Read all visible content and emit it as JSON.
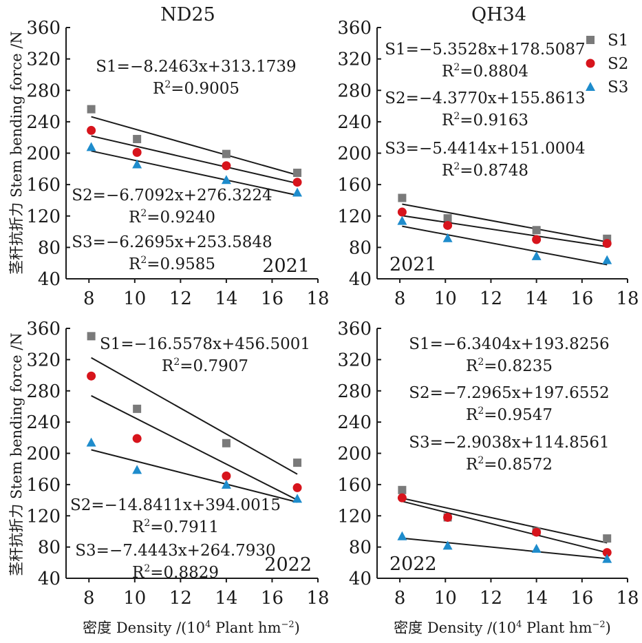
{
  "colors": {
    "S1": "#7a7a7a",
    "S2": "#d7141c",
    "S3": "#1e8ccc"
  },
  "shared_axes": {
    "ylabel": "茎秆抗折力 Stem bending force /N",
    "xlabel": "密度 Density /(10",
    "xlabel_sup": "4",
    "xlabel_tail": " Plant hm",
    "xlabel_sup2": "−2",
    "xlabel_end": ")"
  },
  "legend": {
    "position": "top-right",
    "items": [
      "S1",
      "S2",
      "S3"
    ]
  },
  "chart_data": [
    {
      "type": "scatter",
      "title": "ND25",
      "year": "2021",
      "xlim": [
        7,
        18
      ],
      "ylim": [
        40,
        360
      ],
      "xticks": [
        8,
        10,
        12,
        14,
        16,
        18
      ],
      "yticks": [
        40,
        80,
        120,
        160,
        200,
        240,
        280,
        320,
        360
      ],
      "x": [
        8.1,
        10.1,
        14.0,
        17.1
      ],
      "series": [
        {
          "name": "S1",
          "values": [
            256,
            218,
            199,
            175
          ],
          "fit": [
            -8.2463,
            313.1739
          ],
          "equation": "S1=−8.2463x+313.1739",
          "r2_text": "=0.9005"
        },
        {
          "name": "S2",
          "values": [
            229,
            201,
            184,
            163
          ],
          "fit": [
            -6.7092,
            276.3224
          ],
          "equation": "S2=−6.7092x+276.3224",
          "r2_text": "=0.9240"
        },
        {
          "name": "S3",
          "values": [
            208,
            186,
            166,
            150
          ],
          "fit": [
            -6.2695,
            253.5848
          ],
          "equation": "S3=−6.2695x+253.5848",
          "r2_text": "=0.9585"
        }
      ]
    },
    {
      "type": "scatter",
      "title": "QH34",
      "year": "2021",
      "xlim": [
        7,
        18
      ],
      "ylim": [
        40,
        360
      ],
      "xticks": [
        8,
        10,
        12,
        14,
        16,
        18
      ],
      "yticks": [
        40,
        80,
        120,
        160,
        200,
        240,
        280,
        320,
        360
      ],
      "x": [
        8.1,
        10.1,
        14.0,
        17.1
      ],
      "series": [
        {
          "name": "S1",
          "values": [
            143,
            117,
            102,
            91
          ],
          "fit": [
            -5.3528,
            178.5087
          ],
          "equation": "S1=−5.3528x+178.5087",
          "r2_text": "=0.8804"
        },
        {
          "name": "S2",
          "values": [
            125,
            108,
            90,
            85
          ],
          "fit": [
            -4.377,
            155.8613
          ],
          "equation": "S2=−4.3770x+155.8613",
          "r2_text": "=0.9163"
        },
        {
          "name": "S3",
          "values": [
            114,
            92,
            69,
            64
          ],
          "fit": [
            -5.4414,
            151.0004
          ],
          "equation": "S3=−5.4414x+151.0004",
          "r2_text": "=0.8748"
        }
      ]
    },
    {
      "type": "scatter",
      "title": "",
      "year": "2022",
      "xlim": [
        7,
        18
      ],
      "ylim": [
        40,
        360
      ],
      "xticks": [
        8,
        10,
        12,
        14,
        16,
        18
      ],
      "yticks": [
        40,
        80,
        120,
        160,
        200,
        240,
        280,
        320,
        360
      ],
      "x": [
        8.1,
        10.1,
        14.0,
        17.1
      ],
      "series": [
        {
          "name": "S1",
          "values": [
            350,
            257,
            213,
            188
          ],
          "fit": [
            -16.5578,
            456.5001
          ],
          "equation": "S1=−16.5578x+456.5001",
          "r2_text": "=0.7907"
        },
        {
          "name": "S2",
          "values": [
            299,
            219,
            171,
            156
          ],
          "fit": [
            -14.8411,
            394.0015
          ],
          "equation": "S2=−14.8411x+394.0015",
          "r2_text": "=0.7911"
        },
        {
          "name": "S3",
          "values": [
            214,
            179,
            160,
            142
          ],
          "fit": [
            -7.4443,
            264.793
          ],
          "equation": "S3=−7.4443x+264.7930",
          "r2_text": "=0.8829"
        }
      ]
    },
    {
      "type": "scatter",
      "title": "",
      "year": "2022",
      "xlim": [
        7,
        18
      ],
      "ylim": [
        40,
        360
      ],
      "xticks": [
        8,
        10,
        12,
        14,
        16,
        18
      ],
      "yticks": [
        40,
        80,
        120,
        160,
        200,
        240,
        280,
        320,
        360
      ],
      "x": [
        8.1,
        10.1,
        14.0,
        17.1
      ],
      "series": [
        {
          "name": "S1",
          "values": [
            153,
            118,
            100,
            91
          ],
          "fit": [
            -6.3404,
            193.8256
          ],
          "equation": "S1=−6.3404x+193.8256",
          "r2_text": "=0.8235"
        },
        {
          "name": "S2",
          "values": [
            143,
            118,
            99,
            73
          ],
          "fit": [
            -7.2965,
            197.6552
          ],
          "equation": "S2=−7.2965x+197.6552",
          "r2_text": "=0.9547"
        },
        {
          "name": "S3",
          "values": [
            94,
            82,
            78,
            65
          ],
          "fit": [
            -2.9038,
            114.8561
          ],
          "equation": "S3=−2.9038x+114.8561",
          "r2_text": "=0.8572"
        }
      ]
    }
  ]
}
